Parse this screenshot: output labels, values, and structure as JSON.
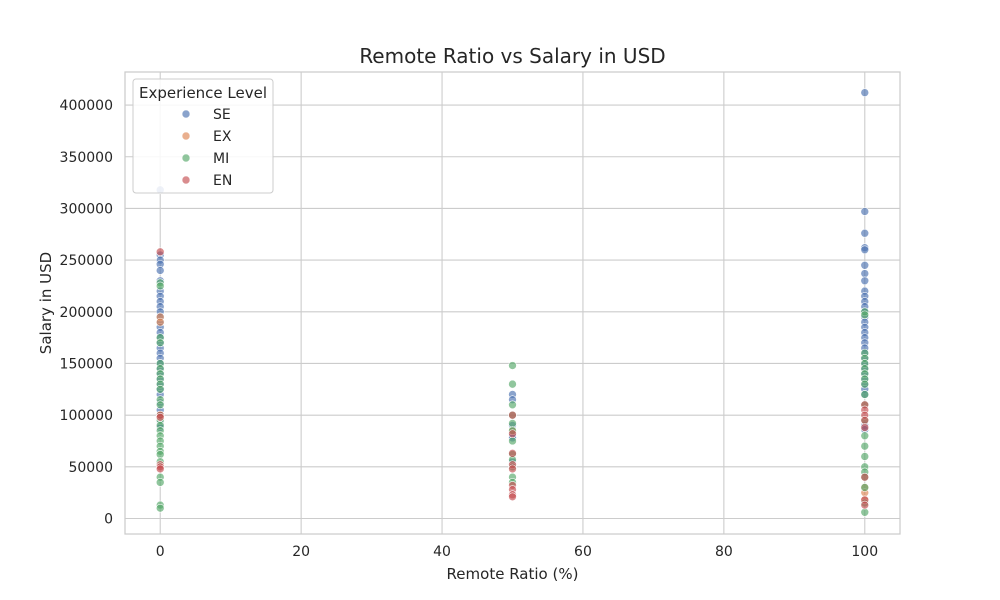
{
  "chart_data": {
    "type": "scatter",
    "title": "Remote Ratio vs Salary in USD",
    "xlabel": "Remote Ratio (%)",
    "ylabel": "Salary in USD",
    "xlim": [
      -5,
      105
    ],
    "ylim": [
      -15000,
      432000
    ],
    "xticks": [
      0,
      20,
      40,
      60,
      80,
      100
    ],
    "yticks": [
      0,
      50000,
      100000,
      150000,
      200000,
      250000,
      300000,
      350000,
      400000
    ],
    "grid": true,
    "legend": {
      "title": "Experience Level",
      "placement": "top-left"
    },
    "point_alpha": 0.65,
    "series": [
      {
        "name": "SE",
        "color": "#4c72b0",
        "points": [
          [
            0,
            318000
          ],
          [
            0,
            255000
          ],
          [
            0,
            250000
          ],
          [
            0,
            246000
          ],
          [
            0,
            240000
          ],
          [
            0,
            230000
          ],
          [
            0,
            220000
          ],
          [
            0,
            215000
          ],
          [
            0,
            210000
          ],
          [
            0,
            205000
          ],
          [
            0,
            200000
          ],
          [
            0,
            195000
          ],
          [
            0,
            190000
          ],
          [
            0,
            185000
          ],
          [
            0,
            180000
          ],
          [
            0,
            175000
          ],
          [
            0,
            170000
          ],
          [
            0,
            165000
          ],
          [
            0,
            160000
          ],
          [
            0,
            155000
          ],
          [
            0,
            150000
          ],
          [
            0,
            145000
          ],
          [
            0,
            140000
          ],
          [
            0,
            135000
          ],
          [
            0,
            130000
          ],
          [
            0,
            125000
          ],
          [
            0,
            120000
          ],
          [
            0,
            112000
          ],
          [
            0,
            105000
          ],
          [
            0,
            92000
          ],
          [
            0,
            88000
          ],
          [
            50,
            120000
          ],
          [
            50,
            115000
          ],
          [
            50,
            90000
          ],
          [
            50,
            80000
          ],
          [
            50,
            78000
          ],
          [
            50,
            55000
          ],
          [
            100,
            412000
          ],
          [
            100,
            297000
          ],
          [
            100,
            276000
          ],
          [
            100,
            262000
          ],
          [
            100,
            260000
          ],
          [
            100,
            245000
          ],
          [
            100,
            237000
          ],
          [
            100,
            230000
          ],
          [
            100,
            220000
          ],
          [
            100,
            215000
          ],
          [
            100,
            210000
          ],
          [
            100,
            205000
          ],
          [
            100,
            200000
          ],
          [
            100,
            195000
          ],
          [
            100,
            190000
          ],
          [
            100,
            185000
          ],
          [
            100,
            180000
          ],
          [
            100,
            175000
          ],
          [
            100,
            170000
          ],
          [
            100,
            165000
          ],
          [
            100,
            160000
          ],
          [
            100,
            155000
          ],
          [
            100,
            150000
          ],
          [
            100,
            145000
          ],
          [
            100,
            140000
          ],
          [
            100,
            135000
          ],
          [
            100,
            130000
          ],
          [
            100,
            125000
          ],
          [
            100,
            120000
          ],
          [
            100,
            90000
          ],
          [
            100,
            86000
          ]
        ]
      },
      {
        "name": "EX",
        "color": "#dd8452",
        "points": [
          [
            0,
            195000
          ],
          [
            0,
            190000
          ],
          [
            0,
            100000
          ],
          [
            50,
            85000
          ],
          [
            100,
            30000
          ],
          [
            100,
            25000
          ],
          [
            100,
            18000
          ]
        ]
      },
      {
        "name": "MI",
        "color": "#55a868",
        "points": [
          [
            0,
            228000
          ],
          [
            0,
            225000
          ],
          [
            0,
            175000
          ],
          [
            0,
            170000
          ],
          [
            0,
            150000
          ],
          [
            0,
            145000
          ],
          [
            0,
            140000
          ],
          [
            0,
            135000
          ],
          [
            0,
            130000
          ],
          [
            0,
            125000
          ],
          [
            0,
            115000
          ],
          [
            0,
            110000
          ],
          [
            0,
            100000
          ],
          [
            0,
            95000
          ],
          [
            0,
            90000
          ],
          [
            0,
            85000
          ],
          [
            0,
            80000
          ],
          [
            0,
            75000
          ],
          [
            0,
            70000
          ],
          [
            0,
            65000
          ],
          [
            0,
            62000
          ],
          [
            0,
            55000
          ],
          [
            0,
            40000
          ],
          [
            0,
            35000
          ],
          [
            0,
            13000
          ],
          [
            0,
            10000
          ],
          [
            50,
            148000
          ],
          [
            50,
            130000
          ],
          [
            50,
            110000
          ],
          [
            50,
            100000
          ],
          [
            50,
            92000
          ],
          [
            50,
            85000
          ],
          [
            50,
            75000
          ],
          [
            50,
            62000
          ],
          [
            50,
            57000
          ],
          [
            50,
            50000
          ],
          [
            50,
            40000
          ],
          [
            50,
            35000
          ],
          [
            100,
            200000
          ],
          [
            100,
            197000
          ],
          [
            100,
            160000
          ],
          [
            100,
            155000
          ],
          [
            100,
            150000
          ],
          [
            100,
            145000
          ],
          [
            100,
            140000
          ],
          [
            100,
            135000
          ],
          [
            100,
            130000
          ],
          [
            100,
            120000
          ],
          [
            100,
            110000
          ],
          [
            100,
            95000
          ],
          [
            100,
            80000
          ],
          [
            100,
            70000
          ],
          [
            100,
            60000
          ],
          [
            100,
            50000
          ],
          [
            100,
            45000
          ],
          [
            100,
            40000
          ],
          [
            100,
            30000
          ],
          [
            100,
            15000
          ],
          [
            100,
            6000
          ]
        ]
      },
      {
        "name": "EN",
        "color": "#c44e52",
        "points": [
          [
            0,
            258000
          ],
          [
            0,
            100000
          ],
          [
            0,
            98000
          ],
          [
            0,
            52000
          ],
          [
            0,
            50000
          ],
          [
            0,
            48000
          ],
          [
            50,
            100000
          ],
          [
            50,
            82000
          ],
          [
            50,
            63000
          ],
          [
            50,
            52000
          ],
          [
            50,
            48000
          ],
          [
            50,
            32000
          ],
          [
            50,
            28000
          ],
          [
            50,
            23000
          ],
          [
            50,
            21000
          ],
          [
            100,
            110000
          ],
          [
            100,
            105000
          ],
          [
            100,
            100000
          ],
          [
            100,
            95000
          ],
          [
            100,
            88000
          ],
          [
            100,
            40000
          ],
          [
            100,
            18000
          ],
          [
            100,
            13000
          ]
        ]
      }
    ]
  }
}
